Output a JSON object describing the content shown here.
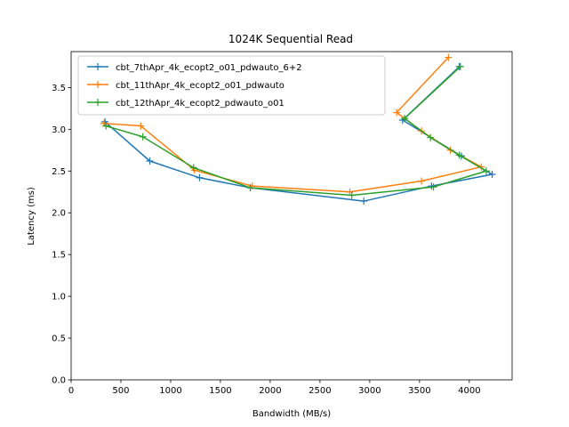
{
  "chart_data": {
    "type": "line",
    "title": "1024K  Sequential Read",
    "xlabel": "Bandwidth (MB/s)",
    "ylabel": "Latency (ms)",
    "xlim": [
      0,
      4430
    ],
    "ylim": [
      0,
      3.93
    ],
    "xticks": [
      0,
      500,
      1000,
      1500,
      2000,
      2500,
      3000,
      3500,
      4000
    ],
    "yticks": [
      0.0,
      0.5,
      1.0,
      1.5,
      2.0,
      2.5,
      3.0,
      3.5
    ],
    "xtick_labels": [
      "0",
      "500",
      "1000",
      "1500",
      "2000",
      "2500",
      "3000",
      "3500",
      "4000"
    ],
    "ytick_labels": [
      "0.0",
      "0.5",
      "1.0",
      "1.5",
      "2.0",
      "2.5",
      "3.0",
      "3.5"
    ],
    "grid": false,
    "legend_position": "top-left",
    "marker": "plus",
    "series": [
      {
        "name": "cbt_7thApr_4k_ecopt2_o01_pdwauto_6+2",
        "color": "#1f77b4",
        "x": [
          340,
          790,
          1290,
          1800,
          2940,
          3620,
          4230,
          3920,
          3330,
          3900
        ],
        "y": [
          3.09,
          2.62,
          2.42,
          2.3,
          2.14,
          2.32,
          2.46,
          2.68,
          3.11,
          3.75
        ]
      },
      {
        "name": "cbt_11thApr_4k_ecopt2_o01_pdwauto",
        "color": "#ff7f0e",
        "x": [
          330,
          700,
          1240,
          1820,
          2800,
          3520,
          4120,
          3810,
          3520,
          3270,
          3790
        ],
        "y": [
          3.07,
          3.04,
          2.51,
          2.32,
          2.25,
          2.38,
          2.55,
          2.75,
          2.98,
          3.2,
          3.86
        ]
      },
      {
        "name": "cbt_12thApr_4k_ecopt2_pdwauto_o01",
        "color": "#2ca02c",
        "x": [
          350,
          720,
          1230,
          1800,
          2820,
          3640,
          4170,
          3900,
          3610,
          3350,
          3910
        ],
        "y": [
          3.04,
          2.91,
          2.54,
          2.3,
          2.21,
          2.31,
          2.5,
          2.69,
          2.9,
          3.13,
          3.75
        ]
      }
    ]
  }
}
